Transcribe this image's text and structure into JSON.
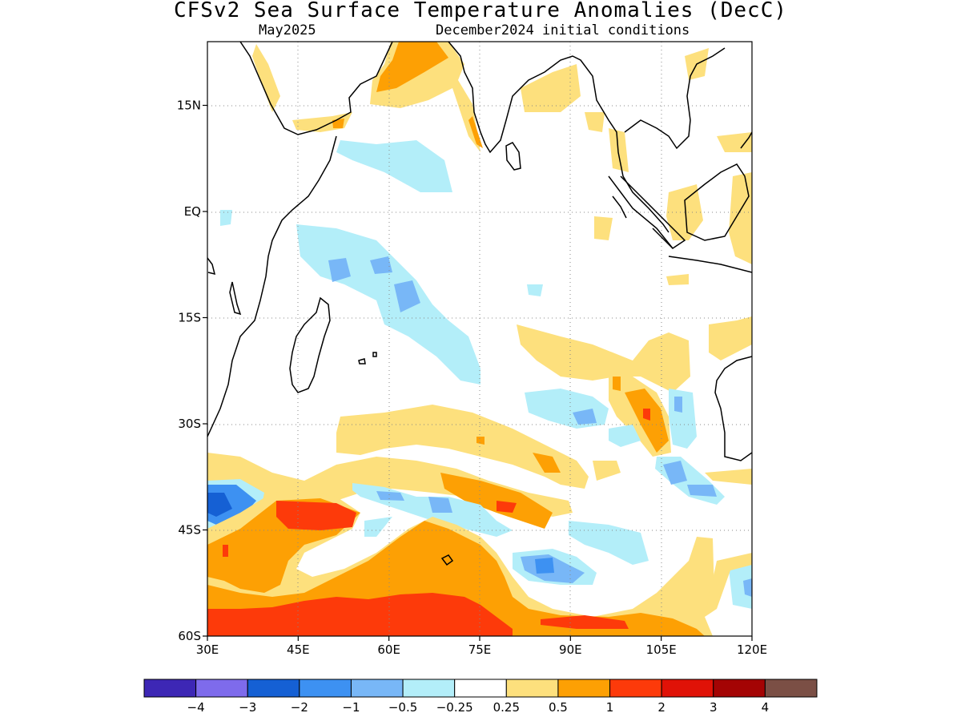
{
  "title": "CFSv2 Sea Surface Temperature Anomalies (DecC)",
  "subtitle_left": "May2025",
  "subtitle_right": "December2024 initial conditions",
  "map": {
    "region": "Indian Ocean",
    "lon_range": [
      30,
      120
    ],
    "lat_range": [
      -60,
      24
    ],
    "lat_ticks": [
      {
        "value": 15,
        "label": "15N"
      },
      {
        "value": 0,
        "label": "EQ"
      },
      {
        "value": -15,
        "label": "15S"
      },
      {
        "value": -30,
        "label": "30S"
      },
      {
        "value": -45,
        "label": "45S"
      },
      {
        "value": -60,
        "label": "60S"
      }
    ],
    "lon_ticks": [
      {
        "value": 30,
        "label": "30E"
      },
      {
        "value": 45,
        "label": "45E"
      },
      {
        "value": 60,
        "label": "60E"
      },
      {
        "value": 75,
        "label": "75E"
      },
      {
        "value": 90,
        "label": "90E"
      },
      {
        "value": 105,
        "label": "105E"
      },
      {
        "value": 120,
        "label": "120E"
      }
    ],
    "grid": true
  },
  "legend": {
    "colors": [
      "#3d27b5",
      "#7e6bec",
      "#1560d4",
      "#3d91f2",
      "#78b7f7",
      "#b3eef9",
      "#ffffff",
      "#fde07d",
      "#fda004",
      "#fd3a0a",
      "#e01207",
      "#a40404",
      "#7b4f45"
    ],
    "labels": [
      "−4",
      "−3",
      "−2",
      "−1",
      "−0.5",
      "−0.25",
      "0.25",
      "0.5",
      "1",
      "2",
      "3",
      "4"
    ]
  }
}
